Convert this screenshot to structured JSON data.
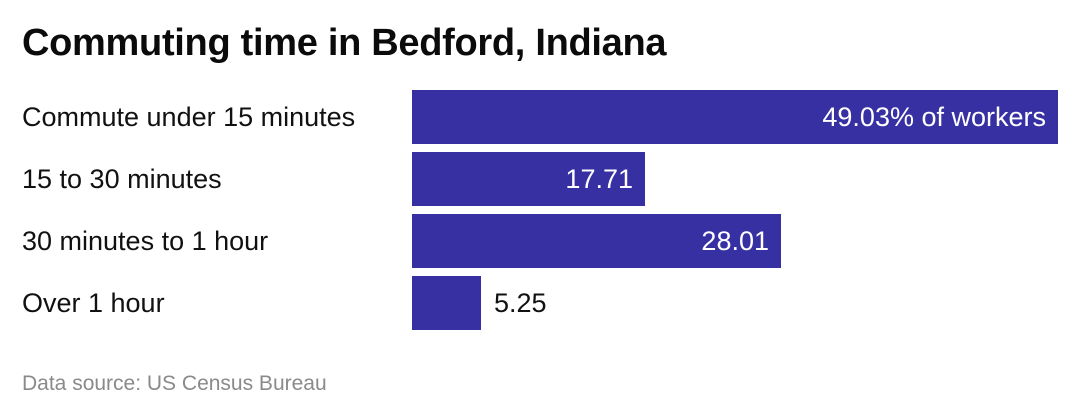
{
  "chart_data": {
    "type": "bar",
    "orientation": "horizontal",
    "title": "Commuting time in Bedford, Indiana",
    "categories": [
      "Commute under 15 minutes",
      "15 to 30 minutes",
      "30 minutes to 1 hour",
      "Over 1 hour"
    ],
    "values": [
      49.03,
      17.71,
      28.01,
      5.25
    ],
    "data_labels": [
      "49.03% of workers",
      "17.71",
      "28.01",
      "5.25"
    ],
    "bar_color": "#3730a3",
    "xlim": [
      0,
      49.03
    ],
    "grid": false,
    "source": "Data source: US Census Bureau"
  }
}
